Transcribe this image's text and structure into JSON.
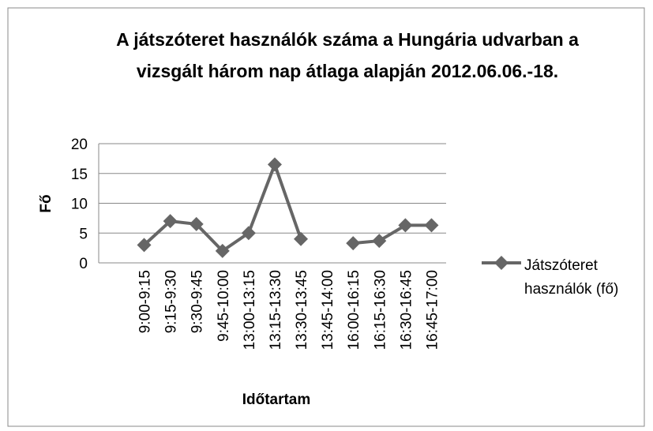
{
  "chart_data": {
    "type": "line",
    "title": "A játszóteret használók száma a Hungária udvarban a vizsgált három nap átlaga alapján 2012.06.06.-18.",
    "x_label": "Időtartam",
    "y_label": "Fő",
    "categories": [
      "9:00-9:15",
      "9:15-9:30",
      "9:30-9:45",
      "9:45-10:00",
      "13:00-13:15",
      "13:15-13:30",
      "13:30-13:45",
      "13:45-14:00",
      "16:00-16:15",
      "16:15-16:30",
      "16:30-16:45",
      "16:45-17:00"
    ],
    "series": [
      {
        "name": "Játszóteret használók (fő)",
        "color": "#666666",
        "values": [
          3,
          7,
          6.5,
          2,
          5,
          16.5,
          4,
          null,
          3.3,
          3.7,
          6.3,
          6.3
        ]
      }
    ],
    "ylim": [
      0,
      20
    ],
    "yticks": [
      0,
      5,
      10,
      15,
      20
    ],
    "grid": true,
    "legend": "right"
  }
}
